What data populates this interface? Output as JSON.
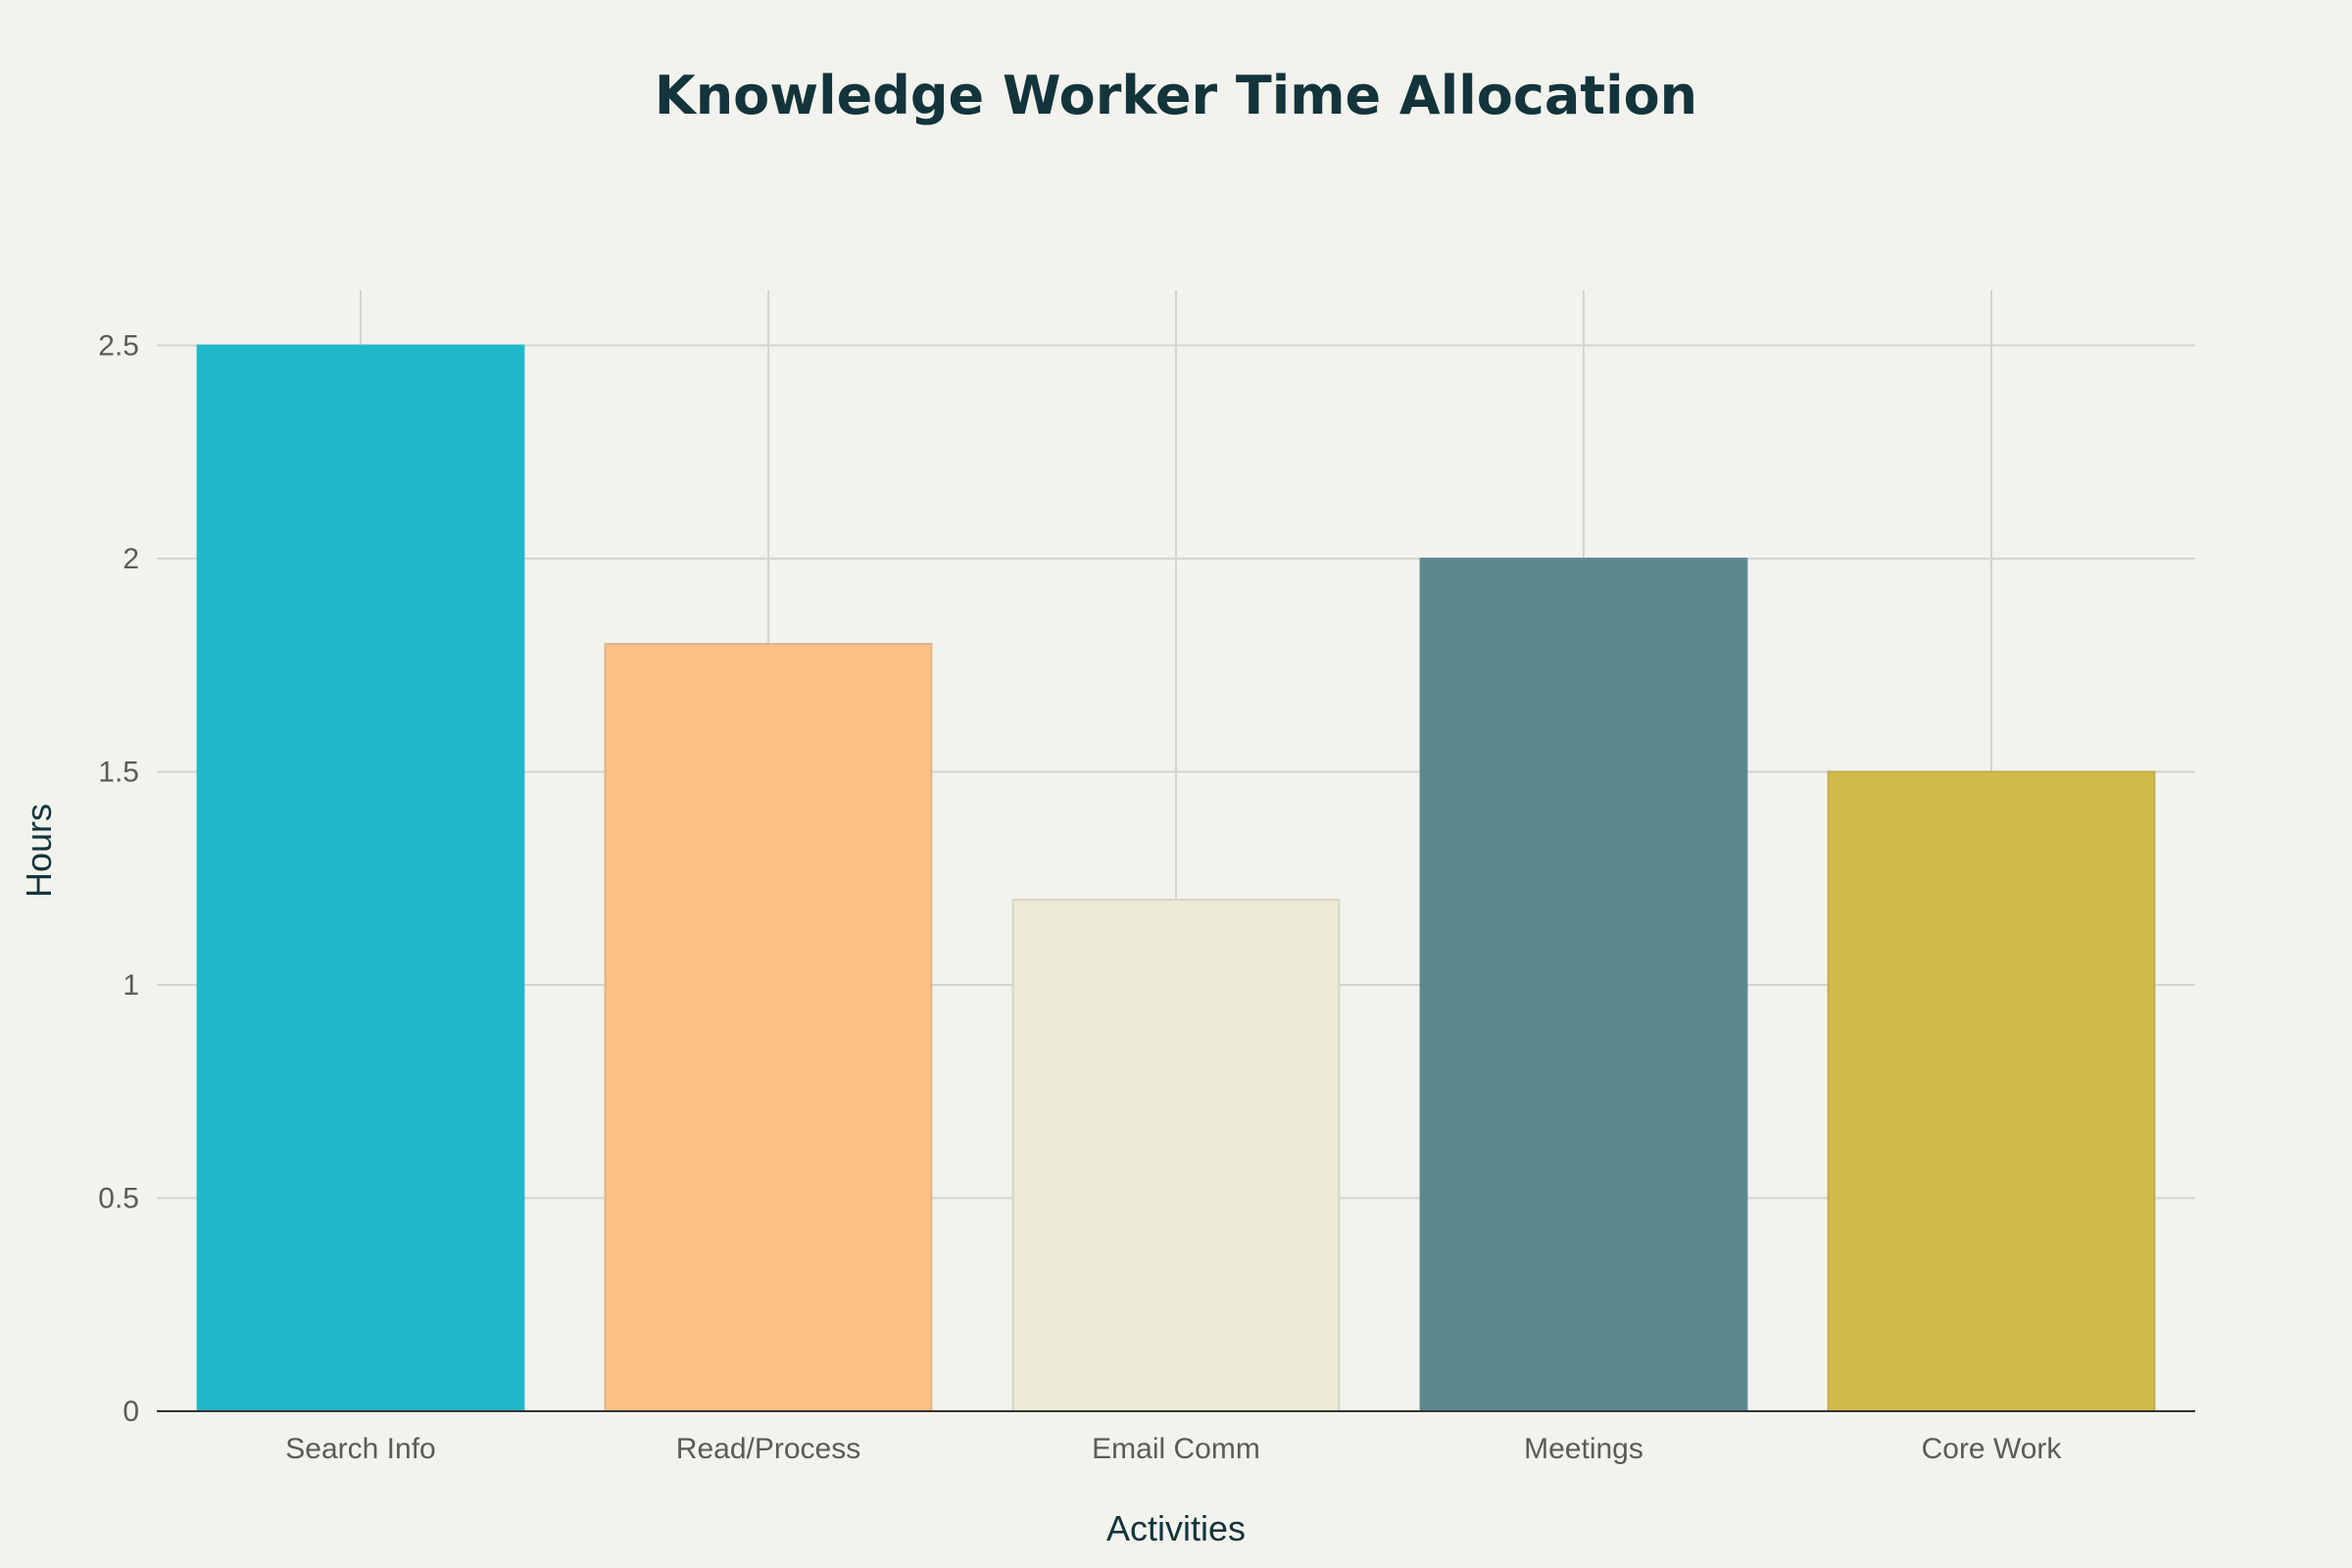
{
  "chart_data": {
    "type": "bar",
    "title": "Knowledge Worker Time Allocation",
    "xlabel": "Activities",
    "ylabel": "Hours",
    "categories": [
      "Search Info",
      "Read/Process",
      "Email Comm",
      "Meetings",
      "Core Work"
    ],
    "values": [
      2.5,
      1.8,
      1.2,
      2.0,
      1.5
    ],
    "colors": [
      "#21b8cc",
      "#ffc185",
      "#ecebd5",
      "#5e8890",
      "#d2ba4c"
    ],
    "bar_border_colors": [
      "#21b8cc",
      "#e0b48a",
      "#d7d6c4",
      "#5e8890",
      "#c2ac48"
    ],
    "ylim": [
      0,
      2.63
    ],
    "yticks": [
      0,
      0.5,
      1,
      1.5,
      2,
      2.5
    ],
    "ytick_labels": [
      "0",
      "0.5",
      "1",
      "1.5",
      "2",
      "2.5"
    ],
    "grid": true,
    "legend": "none"
  }
}
